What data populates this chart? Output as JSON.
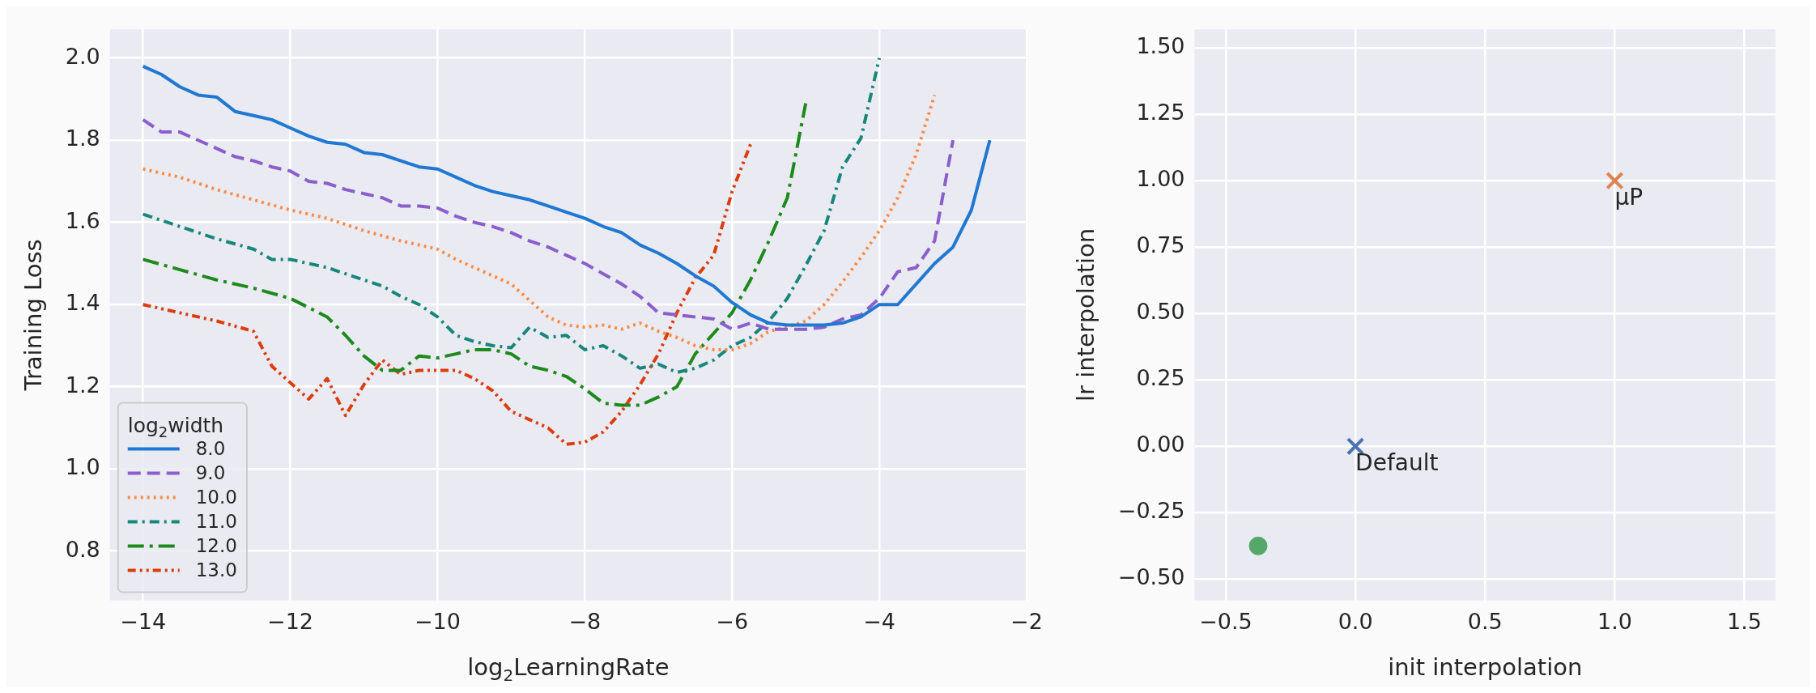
{
  "chart_data": [
    {
      "type": "line",
      "xlabel": "log$_{2}$LearningRate",
      "ylabel": "Training Loss",
      "legend_title": "log$_{2}$width",
      "legend": "bottom left",
      "grid": true,
      "marker": "none",
      "xlim": [
        -14.45,
        -2.0
      ],
      "ylim": [
        0.68,
        2.07
      ],
      "xticks": [
        {
          "value": -14,
          "label": "−14"
        },
        {
          "value": -12,
          "label": "−12"
        },
        {
          "value": -10,
          "label": "−10"
        },
        {
          "value": -8,
          "label": "−8"
        },
        {
          "value": -6,
          "label": "−6"
        },
        {
          "value": -4,
          "label": "−4"
        },
        {
          "value": -2,
          "label": "−2"
        }
      ],
      "yticks": [
        {
          "value": 0.8,
          "label": "0.8"
        },
        {
          "value": 1,
          "label": "1.0"
        },
        {
          "value": 1.2,
          "label": "1.2"
        },
        {
          "value": 1.4,
          "label": "1.4"
        },
        {
          "value": 1.6,
          "label": "1.6"
        },
        {
          "value": 1.8,
          "label": "1.8"
        },
        {
          "value": 2,
          "label": "2.0"
        }
      ],
      "series": [
        {
          "name": "8.0",
          "color": "#1f78d1",
          "line_style": "solid",
          "x": [
            -14,
            -13.75,
            -13.5,
            -13.25,
            -13,
            -12.75,
            -12.5,
            -12.25,
            -12,
            -11.75,
            -11.5,
            -11.25,
            -11,
            -10.75,
            -10.5,
            -10.25,
            -10,
            -9.75,
            -9.5,
            -9.25,
            -9,
            -8.75,
            -8.5,
            -8.25,
            -8,
            -7.75,
            -7.5,
            -7.25,
            -7,
            -6.75,
            -6.5,
            -6.25,
            -6,
            -5.75,
            -5.5,
            -5.25,
            -5,
            -4.75,
            -4.5,
            -4.25,
            -4,
            -3.75,
            -3.5,
            -3.25,
            -3,
            -2.75,
            -2.5
          ],
          "values": [
            1.98,
            1.96,
            1.93,
            1.91,
            1.905,
            1.87,
            1.86,
            1.85,
            1.83,
            1.81,
            1.795,
            1.79,
            1.77,
            1.765,
            1.75,
            1.735,
            1.73,
            1.71,
            1.69,
            1.675,
            1.665,
            1.655,
            1.64,
            1.625,
            1.61,
            1.59,
            1.575,
            1.545,
            1.525,
            1.5,
            1.47,
            1.445,
            1.405,
            1.375,
            1.355,
            1.35,
            1.35,
            1.35,
            1.355,
            1.37,
            1.4,
            1.4,
            1.45,
            1.5,
            1.54,
            1.63,
            1.8
          ]
        },
        {
          "name": "9.0",
          "color": "#8a5fcc",
          "line_style": "dashed",
          "x": [
            -14,
            -13.75,
            -13.5,
            -13.25,
            -13,
            -12.75,
            -12.5,
            -12.25,
            -12,
            -11.75,
            -11.5,
            -11.25,
            -11,
            -10.75,
            -10.5,
            -10.25,
            -10,
            -9.75,
            -9.5,
            -9.25,
            -9,
            -8.75,
            -8.5,
            -8.25,
            -8,
            -7.75,
            -7.5,
            -7.25,
            -7,
            -6.75,
            -6.5,
            -6.25,
            -6,
            -5.75,
            -5.5,
            -5.25,
            -5,
            -4.75,
            -4.5,
            -4.25,
            -4,
            -3.75,
            -3.5,
            -3.25,
            -3
          ],
          "values": [
            1.85,
            1.82,
            1.82,
            1.8,
            1.78,
            1.76,
            1.75,
            1.735,
            1.725,
            1.7,
            1.695,
            1.68,
            1.67,
            1.66,
            1.64,
            1.64,
            1.635,
            1.615,
            1.6,
            1.59,
            1.575,
            1.555,
            1.54,
            1.52,
            1.5,
            1.475,
            1.45,
            1.42,
            1.38,
            1.375,
            1.37,
            1.365,
            1.34,
            1.355,
            1.34,
            1.34,
            1.34,
            1.345,
            1.365,
            1.375,
            1.415,
            1.48,
            1.49,
            1.555,
            1.8
          ]
        },
        {
          "name": "10.0",
          "color": "#fb8d45",
          "line_style": "dotted",
          "x": [
            -14,
            -13.5,
            -13,
            -12.5,
            -12,
            -11.5,
            -11,
            -10.5,
            -10,
            -9.75,
            -9.5,
            -9.25,
            -9,
            -8.75,
            -8.5,
            -8.25,
            -8,
            -7.75,
            -7.5,
            -7.25,
            -7,
            -6.75,
            -6.5,
            -6.25,
            -6,
            -5.75,
            -5.5,
            -5.25,
            -5,
            -4.75,
            -4.5,
            -4.25,
            -4,
            -3.75,
            -3.5,
            -3.25
          ],
          "values": [
            1.73,
            1.71,
            1.68,
            1.655,
            1.63,
            1.61,
            1.58,
            1.555,
            1.535,
            1.51,
            1.49,
            1.47,
            1.45,
            1.41,
            1.37,
            1.35,
            1.345,
            1.35,
            1.34,
            1.355,
            1.335,
            1.32,
            1.3,
            1.29,
            1.29,
            1.305,
            1.335,
            1.345,
            1.36,
            1.4,
            1.455,
            1.515,
            1.58,
            1.66,
            1.765,
            1.91
          ]
        },
        {
          "name": "11.0",
          "color": "#16877a",
          "line_style": "dashed",
          "x": [
            -14,
            -13.5,
            -13,
            -12.5,
            -12.25,
            -12,
            -11.5,
            -11,
            -10.75,
            -10.5,
            -10.25,
            -10,
            -9.75,
            -9.5,
            -9.25,
            -9,
            -8.75,
            -8.5,
            -8.25,
            -8,
            -7.75,
            -7.5,
            -7.25,
            -7,
            -6.75,
            -6.5,
            -6.25,
            -6,
            -5.75,
            -5.5,
            -5.25,
            -5,
            -4.75,
            -4.5,
            -4.25,
            -4
          ],
          "values": [
            1.62,
            1.59,
            1.56,
            1.535,
            1.51,
            1.51,
            1.49,
            1.46,
            1.445,
            1.42,
            1.4,
            1.37,
            1.325,
            1.31,
            1.3,
            1.295,
            1.345,
            1.32,
            1.325,
            1.29,
            1.3,
            1.275,
            1.245,
            1.255,
            1.235,
            1.245,
            1.265,
            1.3,
            1.32,
            1.36,
            1.415,
            1.495,
            1.58,
            1.735,
            1.805,
            2.0
          ]
        },
        {
          "name": "12.0",
          "color": "#1c8a1c",
          "line_style": "dashed",
          "x": [
            -14,
            -13.5,
            -13,
            -12.5,
            -12,
            -11.5,
            -11.25,
            -11,
            -10.75,
            -10.5,
            -10.25,
            -10,
            -9.75,
            -9.5,
            -9.25,
            -9,
            -8.75,
            -8.5,
            -8.25,
            -8,
            -7.75,
            -7.5,
            -7.25,
            -7,
            -6.75,
            -6.5,
            -6.25,
            -6,
            -5.75,
            -5.5,
            -5.25,
            -5
          ],
          "values": [
            1.51,
            1.485,
            1.46,
            1.44,
            1.415,
            1.37,
            1.325,
            1.275,
            1.24,
            1.24,
            1.275,
            1.27,
            1.28,
            1.29,
            1.29,
            1.28,
            1.25,
            1.24,
            1.225,
            1.195,
            1.16,
            1.155,
            1.155,
            1.175,
            1.2,
            1.28,
            1.33,
            1.38,
            1.46,
            1.555,
            1.66,
            1.89
          ]
        },
        {
          "name": "13.0",
          "color": "#dc3d0f",
          "line_style": "dashed",
          "x": [
            -14,
            -13.5,
            -13,
            -12.5,
            -12.25,
            -12,
            -11.75,
            -11.5,
            -11.25,
            -11,
            -10.75,
            -10.5,
            -10.25,
            -10,
            -9.75,
            -9.5,
            -9.25,
            -9,
            -8.75,
            -8.5,
            -8.25,
            -8,
            -7.75,
            -7.5,
            -7.25,
            -7,
            -6.75,
            -6.5,
            -6.25,
            -6,
            -5.75
          ],
          "values": [
            1.4,
            1.38,
            1.36,
            1.335,
            1.25,
            1.21,
            1.17,
            1.22,
            1.13,
            1.205,
            1.265,
            1.23,
            1.24,
            1.24,
            1.24,
            1.22,
            1.19,
            1.14,
            1.12,
            1.1,
            1.06,
            1.065,
            1.09,
            1.14,
            1.205,
            1.28,
            1.38,
            1.465,
            1.52,
            1.675,
            1.79
          ]
        }
      ]
    },
    {
      "type": "scatter",
      "xlabel": "init interpolation",
      "ylabel": "lr interpolation",
      "grid": true,
      "legend": false,
      "xlim": [
        -0.62,
        1.62
      ],
      "ylim": [
        -0.58,
        1.57
      ],
      "xticks": [
        {
          "value": -0.5,
          "label": "−0.5"
        },
        {
          "value": 0,
          "label": "0.0"
        },
        {
          "value": 0.5,
          "label": "0.5"
        },
        {
          "value": 1,
          "label": "1.0"
        },
        {
          "value": 1.5,
          "label": "1.5"
        }
      ],
      "yticks": [
        {
          "value": -0.5,
          "label": "−0.50"
        },
        {
          "value": -0.25,
          "label": "−0.25"
        },
        {
          "value": 0,
          "label": "0.00"
        },
        {
          "value": 0.25,
          "label": "0.25"
        },
        {
          "value": 0.5,
          "label": "0.50"
        },
        {
          "value": 0.75,
          "label": "0.75"
        },
        {
          "value": 1,
          "label": "1.00"
        },
        {
          "value": 1.25,
          "label": "1.25"
        },
        {
          "value": 1.5,
          "label": "1.50"
        }
      ],
      "series": [
        {
          "color": "#4c72b0",
          "marker": "cross",
          "x": [
            0
          ],
          "values": [
            0
          ]
        },
        {
          "color": "#dd8452",
          "marker": "cross",
          "x": [
            1
          ],
          "values": [
            1
          ]
        },
        {
          "color": "#55a868",
          "marker": "circle",
          "x": [
            -0.375
          ],
          "values": [
            -0.375
          ]
        }
      ],
      "annotations": [
        {
          "text": "Default",
          "x": 0,
          "y": 0
        },
        {
          "text": "μP",
          "x": 1,
          "y": 1
        }
      ]
    }
  ]
}
